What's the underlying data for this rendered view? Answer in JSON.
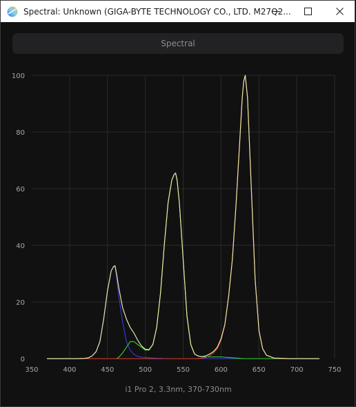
{
  "window": {
    "title": "Spectral: Unknown (GIGA-BYTE TECHNOLOGY CO., LTD. M27Q2...",
    "icons": {
      "app": "spectral-app-icon",
      "minimize": "minimize-icon",
      "maximize": "maximize-icon",
      "close": "close-icon"
    }
  },
  "tab": {
    "label": "Spectral"
  },
  "footer": {
    "instrument": "i1 Pro 2, 3.3nm, 370-730nm"
  },
  "colors": {
    "background": "#111112",
    "grid": "#2a2a2c",
    "total": "#e9e6a4",
    "blue": "#3a3ae0",
    "green": "#2ed82e",
    "red": "#e23c2c"
  },
  "chart_data": {
    "type": "line",
    "xlim": [
      350,
      750
    ],
    "ylim": [
      0,
      100
    ],
    "xticks": [
      350,
      400,
      450,
      500,
      550,
      600,
      650,
      700,
      750
    ],
    "yticks": [
      0,
      20,
      40,
      60,
      80,
      100
    ],
    "grid": true,
    "x": [
      370,
      380,
      390,
      400,
      410,
      420,
      425,
      430,
      435,
      440,
      445,
      450,
      455,
      458,
      460,
      462,
      465,
      470,
      475,
      480,
      485,
      490,
      495,
      500,
      505,
      510,
      515,
      520,
      525,
      530,
      535,
      538,
      540,
      542,
      545,
      550,
      555,
      560,
      565,
      570,
      575,
      580,
      585,
      590,
      595,
      600,
      605,
      610,
      615,
      620,
      625,
      628,
      630,
      632,
      635,
      640,
      645,
      650,
      655,
      660,
      670,
      680,
      690,
      700,
      710,
      720,
      730
    ],
    "series": [
      {
        "key": "total",
        "values": [
          0,
          0,
          0,
          0,
          0,
          0.1,
          0.3,
          1,
          2.5,
          6,
          14,
          24,
          31,
          32.5,
          32.8,
          30,
          25,
          18,
          14,
          11,
          9,
          6.5,
          4.5,
          3.3,
          3.2,
          5,
          11,
          23,
          40,
          55,
          63,
          65,
          65.5,
          63,
          55,
          35,
          15,
          5,
          1.6,
          0.9,
          0.7,
          1,
          1.6,
          2.5,
          4,
          7,
          12,
          22,
          35,
          55,
          78,
          92,
          98,
          100,
          92,
          60,
          28,
          10,
          3.5,
          1.2,
          0.2,
          0.1,
          0,
          0,
          0,
          0,
          0
        ]
      },
      {
        "key": "blue",
        "values": [
          0,
          0,
          0,
          0,
          0,
          0.1,
          0.3,
          1,
          2.5,
          6,
          14,
          24,
          31,
          32.5,
          32.5,
          29,
          22,
          13,
          6,
          3,
          1.5,
          0.8,
          0.5,
          0.4,
          0.3,
          0.2,
          0.1,
          0.1,
          0,
          0,
          0,
          0,
          0,
          0,
          0,
          0,
          0,
          0,
          0,
          0,
          0,
          0,
          0,
          0,
          0,
          0,
          0,
          0,
          0,
          0,
          0,
          0,
          0,
          0,
          0,
          0,
          0,
          0,
          0,
          0,
          0,
          0,
          0,
          0,
          0,
          0,
          0
        ]
      },
      {
        "key": "green",
        "values": [
          0,
          0,
          0,
          0,
          0,
          0,
          0,
          0,
          0,
          0,
          0,
          0,
          0,
          0,
          0,
          0,
          0.5,
          2,
          4,
          6,
          6,
          5,
          4,
          3,
          3,
          5,
          11,
          23,
          40,
          55,
          63,
          65,
          65.5,
          63,
          55,
          35,
          15,
          5,
          1.6,
          0.9,
          0.7,
          0.6,
          0.6,
          0.6,
          0.6,
          0.6,
          0.5,
          0.4,
          0.3,
          0.2,
          0.1,
          0,
          0,
          0,
          0,
          0,
          0,
          0,
          0,
          0,
          0,
          0,
          0,
          0,
          0,
          0,
          0
        ]
      },
      {
        "key": "red",
        "values": [
          0,
          0,
          0,
          0,
          0,
          0,
          0,
          0,
          0,
          0,
          0,
          0,
          0,
          0,
          0,
          0,
          0,
          0,
          0,
          0,
          0,
          0,
          0,
          0,
          0,
          0,
          0,
          0,
          0,
          0,
          0,
          0,
          0,
          0,
          0,
          0,
          0,
          0,
          0,
          0.05,
          0.2,
          0.4,
          1,
          2,
          3.5,
          6.5,
          12,
          22,
          35,
          55,
          78,
          92,
          98,
          100,
          92,
          60,
          28,
          10,
          3.5,
          1.2,
          0.2,
          0.1,
          0,
          0,
          0,
          0,
          0
        ]
      }
    ]
  }
}
